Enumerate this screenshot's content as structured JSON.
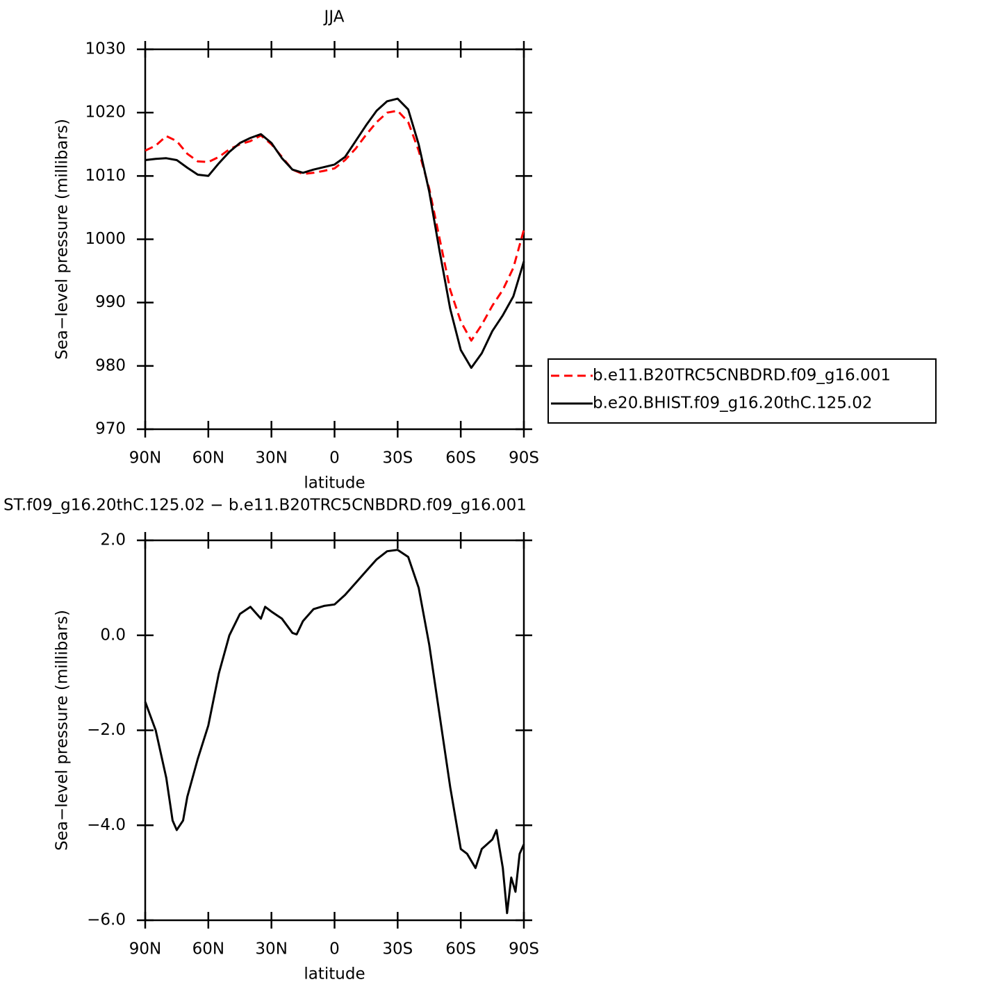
{
  "chart_data": [
    {
      "type": "line",
      "title": "JJA",
      "x_label": "latitude",
      "y_label": "Sea−level pressure (millibars)",
      "x": [
        90,
        85,
        80,
        75,
        70,
        65,
        60,
        55,
        50,
        45,
        40,
        35,
        30,
        25,
        20,
        15,
        10,
        5,
        0,
        -5,
        -10,
        -15,
        -20,
        -25,
        -30,
        -35,
        -40,
        -45,
        -50,
        -55,
        -60,
        -65,
        -70,
        -75,
        -80,
        -85,
        -90
      ],
      "series": [
        {
          "name": "b.e11.B20TRC5CNBDRD.f09_g16.001",
          "color": "#ff0000",
          "line_style": "dashed",
          "values": [
            1014.0,
            1014.8,
            1016.3,
            1015.5,
            1013.5,
            1012.3,
            1012.2,
            1013.0,
            1014.2,
            1015.0,
            1015.5,
            1016.4,
            1015.0,
            1013.0,
            1011.0,
            1010.3,
            1010.5,
            1010.8,
            1011.2,
            1012.5,
            1014.3,
            1016.5,
            1018.5,
            1020.0,
            1020.3,
            1018.5,
            1014.0,
            1008.0,
            1000.0,
            992.0,
            987.0,
            984.0,
            986.5,
            989.5,
            992.0,
            995.5,
            1001.5
          ]
        },
        {
          "name": "b.e20.BHIST.f09_g16.20thC.125.02",
          "color": "#000000",
          "line_style": "solid",
          "values": [
            1012.5,
            1012.7,
            1012.8,
            1012.5,
            1011.3,
            1010.2,
            1010.0,
            1012.0,
            1013.8,
            1015.2,
            1016.0,
            1016.6,
            1015.2,
            1012.8,
            1011.0,
            1010.5,
            1011.0,
            1011.4,
            1011.8,
            1013.0,
            1015.5,
            1018.0,
            1020.3,
            1021.8,
            1022.2,
            1020.5,
            1015.0,
            1007.5,
            998.0,
            989.0,
            982.5,
            979.7,
            982.0,
            985.5,
            988.0,
            991.0,
            996.5
          ]
        }
      ],
      "xlim": [
        90,
        -90
      ],
      "xticks": [
        {
          "value": 90,
          "label": "90N"
        },
        {
          "value": 60,
          "label": "60N"
        },
        {
          "value": 30,
          "label": "30N"
        },
        0,
        {
          "value": -30,
          "label": "30S"
        },
        {
          "value": -60,
          "label": "60S"
        },
        {
          "value": -90,
          "label": "90S"
        }
      ],
      "ylim": [
        970,
        1030
      ],
      "yticks": [
        970,
        980,
        990,
        1000,
        1010,
        1020,
        1030
      ],
      "legend": "right"
    },
    {
      "type": "line",
      "title": "ST.f09_g16.20thC.125.02 − b.e11.B20TRC5CNBDRD.f09_g16.001",
      "x_label": "latitude",
      "y_label": "Sea−level pressure (millibars)",
      "x": [
        90,
        85,
        80,
        77,
        75,
        72,
        70,
        65,
        60,
        55,
        50,
        45,
        40,
        35,
        33,
        30,
        25,
        20,
        18,
        15,
        10,
        5,
        0,
        -5,
        -10,
        -15,
        -20,
        -25,
        -30,
        -35,
        -40,
        -45,
        -50,
        -55,
        -60,
        -63,
        -67,
        -70,
        -75,
        -77,
        -80,
        -82,
        -84,
        -86,
        -88,
        -90
      ],
      "series": [
        {
          "color": "#000000",
          "line_style": "solid",
          "values": [
            -1.4,
            -2.0,
            -3.0,
            -3.9,
            -4.1,
            -3.9,
            -3.4,
            -2.6,
            -1.9,
            -0.8,
            0.0,
            0.45,
            0.6,
            0.35,
            0.6,
            0.5,
            0.35,
            0.05,
            0.02,
            0.3,
            0.55,
            0.62,
            0.65,
            0.85,
            1.1,
            1.35,
            1.6,
            1.77,
            1.8,
            1.65,
            1.0,
            -0.2,
            -1.7,
            -3.2,
            -4.5,
            -4.6,
            -4.9,
            -4.5,
            -4.3,
            -4.1,
            -4.9,
            -5.85,
            -5.1,
            -5.4,
            -4.6,
            -4.4
          ]
        }
      ],
      "xlim": [
        90,
        -90
      ],
      "xticks": [
        {
          "value": 90,
          "label": "90N"
        },
        {
          "value": 60,
          "label": "60N"
        },
        {
          "value": 30,
          "label": "30N"
        },
        0,
        {
          "value": -30,
          "label": "30S"
        },
        {
          "value": -60,
          "label": "60S"
        },
        {
          "value": -90,
          "label": "90S"
        }
      ],
      "ylim": [
        -6,
        2
      ],
      "yticks": [
        {
          "value": -6,
          "label": "−6.0"
        },
        {
          "value": -4,
          "label": "−4.0"
        },
        {
          "value": -2,
          "label": "−2.0"
        },
        {
          "value": 0,
          "label": "0.0"
        },
        {
          "value": 2,
          "label": "2.0"
        }
      ]
    }
  ]
}
